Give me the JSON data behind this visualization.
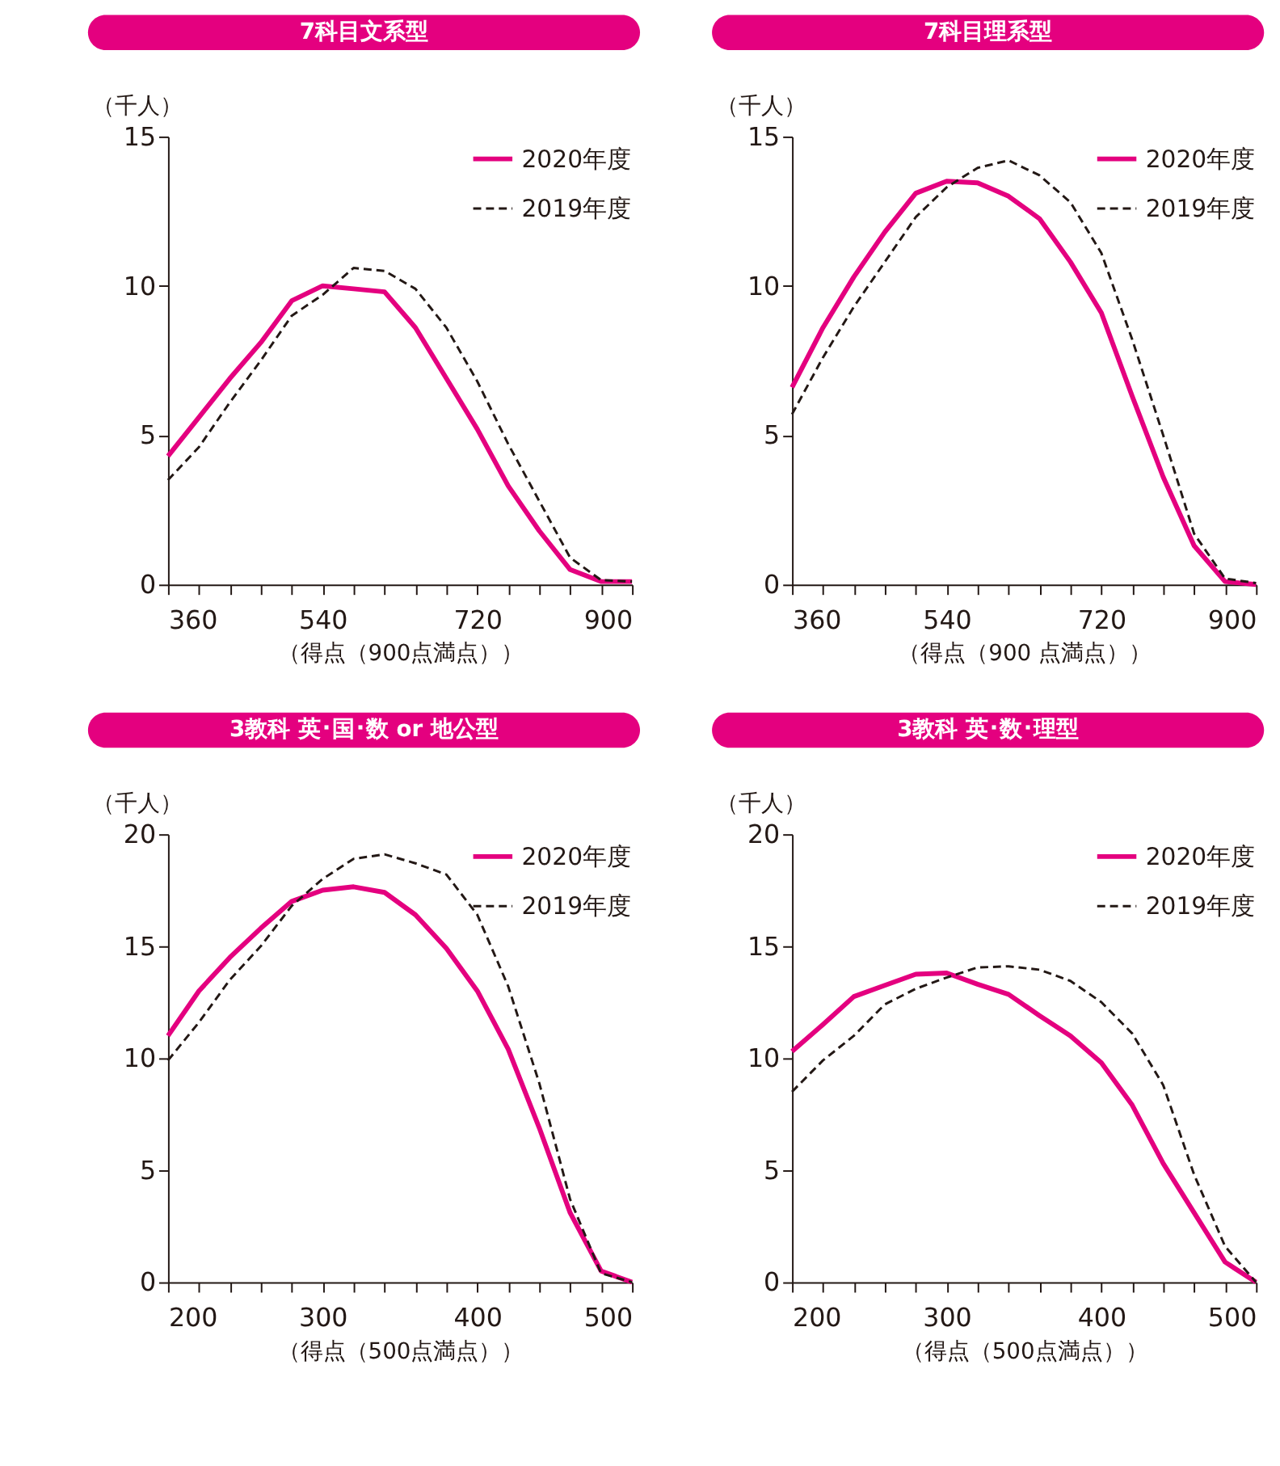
{
  "chart_data": [
    {
      "type": "line",
      "title": "7科目文系型",
      "xlabel": "（得点（900点満点））",
      "ylabel": "（千人）",
      "x": [
        360,
        396,
        432,
        468,
        504,
        540,
        576,
        612,
        648,
        684,
        720,
        756,
        792,
        828,
        864,
        900
      ],
      "xlim": [
        360,
        900
      ],
      "xticks": [
        360,
        {
          "value": 396,
          "label": null
        },
        {
          "value": 432,
          "label": null
        },
        {
          "value": 468,
          "label": null
        },
        {
          "value": 504,
          "label": null
        },
        540,
        {
          "value": 576,
          "label": null
        },
        {
          "value": 612,
          "label": null
        },
        {
          "value": 648,
          "label": null
        },
        {
          "value": 684,
          "label": null
        },
        720,
        {
          "value": 756,
          "label": null
        },
        {
          "value": 792,
          "label": null
        },
        {
          "value": 828,
          "label": null
        },
        {
          "value": 864,
          "label": null
        },
        900
      ],
      "ylim": [
        0,
        15
      ],
      "yticks": [
        0,
        5,
        10,
        15
      ],
      "grid": false,
      "legend": "top right",
      "series": [
        {
          "name": "2020年度",
          "color": "#e4007f",
          "line_style": "solid",
          "values": [
            4.3,
            5.6,
            6.9,
            8.1,
            9.5,
            10.0,
            9.9,
            9.8,
            8.6,
            6.9,
            5.2,
            3.3,
            1.8,
            0.5,
            0.1,
            0.1
          ]
        },
        {
          "name": "2019年度",
          "color": "#231815",
          "line_style": "dashed",
          "values": [
            3.5,
            4.6,
            6.1,
            7.5,
            9.0,
            9.7,
            10.6,
            10.5,
            9.9,
            8.6,
            6.8,
            4.7,
            2.8,
            0.9,
            0.15,
            0.1
          ]
        }
      ]
    },
    {
      "type": "line",
      "title": "7科目理系型",
      "xlabel": "（得点（900 点満点））",
      "ylabel": "（千人）",
      "x": [
        360,
        396,
        432,
        468,
        504,
        540,
        576,
        612,
        648,
        684,
        720,
        756,
        792,
        828,
        864,
        900
      ],
      "xlim": [
        360,
        900
      ],
      "xticks": [
        360,
        {
          "value": 396,
          "label": null
        },
        {
          "value": 432,
          "label": null
        },
        {
          "value": 468,
          "label": null
        },
        {
          "value": 504,
          "label": null
        },
        540,
        {
          "value": 576,
          "label": null
        },
        {
          "value": 612,
          "label": null
        },
        {
          "value": 648,
          "label": null
        },
        {
          "value": 684,
          "label": null
        },
        720,
        {
          "value": 756,
          "label": null
        },
        {
          "value": 792,
          "label": null
        },
        {
          "value": 828,
          "label": null
        },
        {
          "value": 864,
          "label": null
        },
        900
      ],
      "ylim": [
        0,
        15
      ],
      "yticks": [
        0,
        5,
        10,
        15
      ],
      "grid": false,
      "legend": "top right",
      "series": [
        {
          "name": "2020年度",
          "color": "#e4007f",
          "line_style": "solid",
          "values": [
            6.6,
            8.6,
            10.3,
            11.8,
            13.1,
            13.5,
            13.45,
            13.0,
            12.25,
            10.8,
            9.1,
            6.3,
            3.6,
            1.3,
            0.1,
            0.0
          ]
        },
        {
          "name": "2019年度",
          "color": "#231815",
          "line_style": "dashed",
          "values": [
            5.7,
            7.6,
            9.3,
            10.8,
            12.3,
            13.3,
            13.95,
            14.2,
            13.7,
            12.8,
            11.1,
            8.2,
            5.0,
            1.7,
            0.2,
            0.05
          ]
        }
      ]
    },
    {
      "type": "line",
      "title": "3教科 英･国･数 or 地公型",
      "xlabel": "（得点（500点満点））",
      "ylabel": "（千人）",
      "x": [
        200,
        220,
        240,
        260,
        280,
        300,
        320,
        340,
        360,
        380,
        400,
        420,
        440,
        460,
        480,
        500
      ],
      "xlim": [
        200,
        500
      ],
      "xticks": [
        200,
        {
          "value": 220,
          "label": null
        },
        {
          "value": 240,
          "label": null
        },
        {
          "value": 260,
          "label": null
        },
        {
          "value": 280,
          "label": null
        },
        300,
        {
          "value": 320,
          "label": null
        },
        {
          "value": 340,
          "label": null
        },
        {
          "value": 360,
          "label": null
        },
        {
          "value": 380,
          "label": null
        },
        400,
        {
          "value": 420,
          "label": null
        },
        {
          "value": 440,
          "label": null
        },
        {
          "value": 460,
          "label": null
        },
        {
          "value": 480,
          "label": null
        },
        500
      ],
      "ylim": [
        0,
        20
      ],
      "yticks": [
        0,
        5,
        10,
        15,
        20
      ],
      "grid": false,
      "legend": "top right",
      "series": [
        {
          "name": "2020年度",
          "color": "#e4007f",
          "line_style": "solid",
          "values": [
            11.0,
            13.0,
            14.5,
            15.8,
            17.0,
            17.5,
            17.65,
            17.4,
            16.4,
            14.9,
            13.0,
            10.4,
            6.9,
            3.1,
            0.5,
            0.0
          ]
        },
        {
          "name": "2019年度",
          "color": "#231815",
          "line_style": "dashed",
          "values": [
            9.9,
            11.6,
            13.5,
            15.0,
            16.8,
            18.0,
            18.9,
            19.1,
            18.7,
            18.2,
            16.4,
            13.2,
            8.9,
            3.7,
            0.4,
            0.0
          ]
        }
      ]
    },
    {
      "type": "line",
      "title": "3教科 英･数･理型",
      "xlabel": "（得点（500点満点））",
      "ylabel": "（千人）",
      "x": [
        200,
        220,
        240,
        260,
        280,
        300,
        320,
        340,
        360,
        380,
        400,
        420,
        440,
        460,
        480,
        500
      ],
      "xlim": [
        200,
        500
      ],
      "xticks": [
        200,
        {
          "value": 220,
          "label": null
        },
        {
          "value": 240,
          "label": null
        },
        {
          "value": 260,
          "label": null
        },
        {
          "value": 280,
          "label": null
        },
        300,
        {
          "value": 320,
          "label": null
        },
        {
          "value": 340,
          "label": null
        },
        {
          "value": 360,
          "label": null
        },
        {
          "value": 380,
          "label": null
        },
        400,
        {
          "value": 420,
          "label": null
        },
        {
          "value": 440,
          "label": null
        },
        {
          "value": 460,
          "label": null
        },
        {
          "value": 480,
          "label": null
        },
        500
      ],
      "ylim": [
        0,
        20
      ],
      "yticks": [
        0,
        5,
        10,
        15,
        20
      ],
      "grid": false,
      "legend": "top right",
      "series": [
        {
          "name": "2020年度",
          "color": "#e4007f",
          "line_style": "solid",
          "values": [
            10.3,
            11.5,
            12.75,
            13.25,
            13.75,
            13.8,
            13.3,
            12.85,
            11.9,
            11.0,
            9.8,
            7.9,
            5.3,
            3.1,
            0.9,
            0.0
          ]
        },
        {
          "name": "2019年度",
          "color": "#231815",
          "line_style": "dashed",
          "values": [
            8.5,
            9.9,
            11.0,
            12.4,
            13.1,
            13.6,
            14.05,
            14.1,
            13.95,
            13.45,
            12.5,
            11.1,
            8.8,
            4.8,
            1.6,
            0.0
          ]
        }
      ]
    }
  ]
}
